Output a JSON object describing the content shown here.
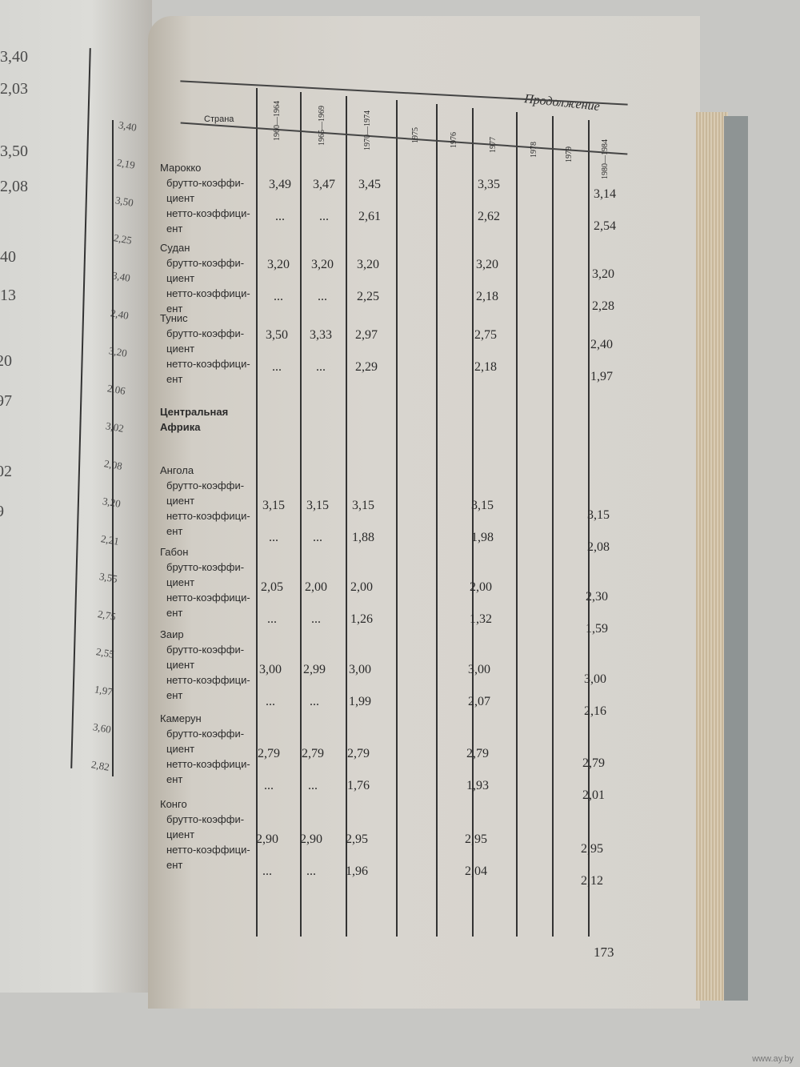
{
  "page": {
    "continuation_label": "Продолжение",
    "page_number": "173",
    "watermark": "www.ay.by"
  },
  "table": {
    "columns": [
      "Страна",
      "1960—1964",
      "1965—1969",
      "1970—1974",
      "1975",
      "1976",
      "1977",
      "1978",
      "1979",
      "1980—1984"
    ],
    "row_labels": {
      "gross": "брутто-коэффи-\nциент",
      "net": "нетто-коэффици-\nент"
    },
    "blocks": [
      {
        "country": "Марокко",
        "gross": [
          "3,49",
          "3,47",
          "3,45",
          "3,35",
          "3,14"
        ],
        "net": [
          "...",
          "...",
          "2,61",
          "2,62",
          "2,54"
        ]
      },
      {
        "country": "Судан",
        "gross": [
          "3,20",
          "3,20",
          "3,20",
          "3,20",
          "3,20"
        ],
        "net": [
          "...",
          "...",
          "2,25",
          "2,18",
          "2,28"
        ]
      },
      {
        "country": "Тунис",
        "gross": [
          "3,50",
          "3,33",
          "2,97",
          "2,75",
          "2,40"
        ],
        "net": [
          "...",
          "...",
          "2,29",
          "2,18",
          "1,97"
        ]
      },
      {
        "region": "Центральная\nАфрика"
      },
      {
        "country": "Ангола",
        "gross": [
          "3,15",
          "3,15",
          "3,15",
          "3,15",
          "3,15"
        ],
        "net": [
          "...",
          "...",
          "1,88",
          "1,98",
          "2,08"
        ]
      },
      {
        "country": "Габон",
        "gross": [
          "2,05",
          "2,00",
          "2,00",
          "2,00",
          "2,30"
        ],
        "net": [
          "...",
          "...",
          "1,26",
          "1,32",
          "1,59"
        ]
      },
      {
        "country": "Заир",
        "gross": [
          "3,00",
          "2,99",
          "3,00",
          "3,00",
          "3,00"
        ],
        "net": [
          "...",
          "...",
          "1,99",
          "2,07",
          "2,16"
        ]
      },
      {
        "country": "Камерун",
        "gross": [
          "2,79",
          "2,79",
          "2,79",
          "2,79",
          "2,79"
        ],
        "net": [
          "...",
          "...",
          "1,76",
          "1,93",
          "2,01"
        ]
      },
      {
        "country": "Конго",
        "gross": [
          "2,90",
          "2,90",
          "2,95",
          "2,95",
          "2,95"
        ],
        "net": [
          "...",
          "...",
          "1,96",
          "2,04",
          "2,12"
        ]
      }
    ]
  },
  "left_page": {
    "outer_values": [
      "3,40",
      "2,03",
      "3,50",
      "2,08",
      ",40",
      ",13",
      "20",
      "97",
      "02",
      "9"
    ],
    "inner_values": [
      "3,40",
      "2,19",
      "3,50",
      "2,25",
      "3,40",
      "2,40",
      "3,20",
      "2,06",
      "3,02",
      "2,08",
      "3,20",
      "2,21",
      "3,55",
      "2,75",
      "2,55",
      "1,97",
      "3,60",
      "2,82"
    ]
  }
}
